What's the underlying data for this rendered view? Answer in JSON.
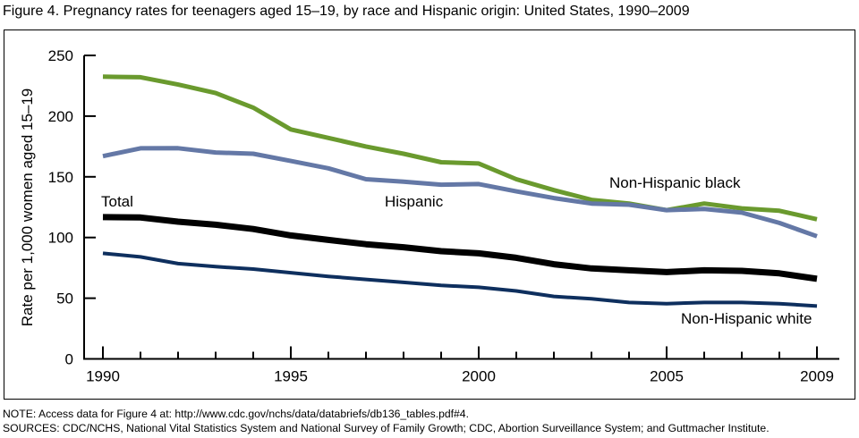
{
  "chart_data": {
    "type": "line",
    "title": "Figure 4. Pregnancy rates for teenagers aged 15–19, by race and Hispanic origin: United States, 1990–2009",
    "xlabel": "",
    "ylabel": "Rate per 1,000 women aged 15–19",
    "ylim": [
      0,
      250
    ],
    "xlim": [
      1990,
      2009
    ],
    "yticks": [
      0,
      50,
      100,
      150,
      200,
      250
    ],
    "xtick_labels": [
      "1990",
      "1995",
      "2000",
      "2005",
      "2009"
    ],
    "x": [
      1990,
      1991,
      1992,
      1993,
      1994,
      1995,
      1996,
      1997,
      1998,
      1999,
      2000,
      2001,
      2002,
      2003,
      2004,
      2005,
      2006,
      2007,
      2008,
      2009
    ],
    "grid": false,
    "legend": "inline-labels",
    "series": [
      {
        "name": "Non-Hispanic black",
        "label": "Non-Hispanic black",
        "color": "#6a9a2e",
        "values": [
          232.5,
          232,
          226,
          219,
          207,
          189,
          182,
          175,
          169,
          162,
          161,
          148,
          139,
          131,
          128,
          122.5,
          128,
          124,
          122,
          115
        ]
      },
      {
        "name": "Hispanic",
        "label": "Hispanic",
        "color": "#6478a6",
        "values": [
          167,
          173.5,
          173.6,
          170,
          169,
          163,
          157,
          148,
          146,
          143.5,
          144,
          138,
          132.5,
          128,
          127,
          122.5,
          123.5,
          120.5,
          112,
          101
        ]
      },
      {
        "name": "Total",
        "label": "Total",
        "color": "#000000",
        "values": [
          116.8,
          116.5,
          113,
          110.5,
          107,
          101.7,
          98,
          94.5,
          92,
          88.7,
          87,
          83.3,
          78,
          74.5,
          73,
          71.5,
          73,
          72.5,
          70.5,
          66
        ]
      },
      {
        "name": "Non-Hispanic white",
        "label": "Non-Hispanic white",
        "color": "#0e2f5e",
        "values": [
          87,
          84,
          78.5,
          76,
          74,
          71,
          68,
          65.5,
          63,
          60.5,
          59,
          56,
          51.5,
          49.5,
          46.5,
          45.5,
          46.5,
          46.5,
          45.5,
          43.5
        ]
      }
    ]
  },
  "footer": {
    "note": "NOTE: Access data for Figure 4 at: http://www.cdc.gov/nchs/data/databriefs/db136_tables.pdf#4.",
    "sources": "SOURCES: CDC/NCHS, National Vital Statistics System and National Survey of Family Growth; CDC, Abortion Surveillance System; and Guttmacher Institute."
  }
}
